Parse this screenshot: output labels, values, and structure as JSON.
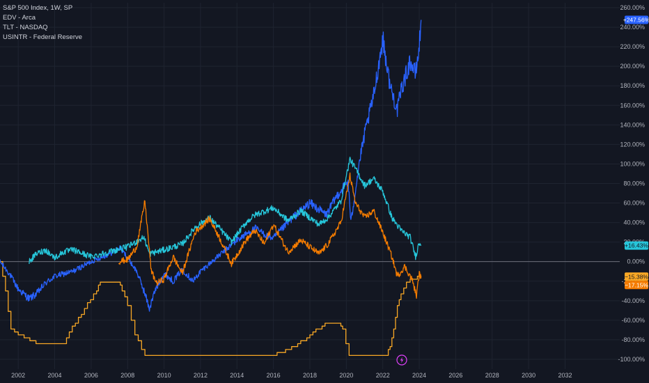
{
  "legend": {
    "main": "S&P 500 Index, 1W, SP",
    "items": [
      "EDV - Arca",
      "TLT - NASDAQ",
      "USINTR - Federal Reserve"
    ]
  },
  "colors": {
    "background": "#131722",
    "grid": "#1f2430",
    "spx": "#2962ff",
    "edv": "#f57c00",
    "tlt": "#26c6da",
    "usintr": "#f9a825",
    "zero": "#787b86",
    "flash": "#e040fb"
  },
  "flash_icon": "lightning-icon",
  "chart_data": {
    "type": "line",
    "title": "S&P 500 Index, 1W, SP",
    "xlim": [
      2001.0,
      2035.0
    ],
    "ylim": [
      -110,
      265
    ],
    "x_ticks": [
      "2002",
      "2004",
      "2006",
      "2008",
      "2010",
      "2012",
      "2014",
      "2016",
      "2018",
      "2020",
      "2022",
      "2024",
      "2026",
      "2028",
      "2030",
      "2032"
    ],
    "y_ticks": [
      "260.00%",
      "240.00%",
      "220.00%",
      "200.00%",
      "180.00%",
      "160.00%",
      "140.00%",
      "120.00%",
      "100.00%",
      "80.00%",
      "60.00%",
      "40.00%",
      "20.00%",
      "0.00%",
      "-20.00%",
      "-40.00%",
      "-60.00%",
      "-80.00%",
      "-100.00%"
    ],
    "grid": true,
    "last_values": {
      "spx": "+247.56%",
      "tlt": "+16.43%",
      "edv_a": "−15.38%",
      "edv_b": "−17.15%"
    },
    "series": [
      {
        "name": "S&P 500 Index",
        "key": "spx",
        "points": [
          [
            2001.0,
            0
          ],
          [
            2001.5,
            -12
          ],
          [
            2002.0,
            -28
          ],
          [
            2002.6,
            -38
          ],
          [
            2003.0,
            -33
          ],
          [
            2003.5,
            -22
          ],
          [
            2004.0,
            -15
          ],
          [
            2005.0,
            -10
          ],
          [
            2006.0,
            0
          ],
          [
            2007.0,
            8
          ],
          [
            2007.6,
            14
          ],
          [
            2008.0,
            4
          ],
          [
            2008.5,
            -10
          ],
          [
            2008.9,
            -30
          ],
          [
            2009.2,
            -48
          ],
          [
            2009.5,
            -30
          ],
          [
            2010.0,
            -12
          ],
          [
            2010.5,
            -20
          ],
          [
            2011.0,
            -8
          ],
          [
            2011.6,
            -20
          ],
          [
            2012.0,
            -10
          ],
          [
            2013.0,
            6
          ],
          [
            2014.0,
            22
          ],
          [
            2015.0,
            34
          ],
          [
            2015.7,
            26
          ],
          [
            2016.0,
            24
          ],
          [
            2017.0,
            44
          ],
          [
            2018.0,
            60
          ],
          [
            2018.9,
            48
          ],
          [
            2019.5,
            68
          ],
          [
            2020.1,
            82
          ],
          [
            2020.25,
            40
          ],
          [
            2020.7,
            100
          ],
          [
            2021.0,
            130
          ],
          [
            2021.5,
            170
          ],
          [
            2022.0,
            228
          ],
          [
            2022.4,
            180
          ],
          [
            2022.8,
            155
          ],
          [
            2023.0,
            175
          ],
          [
            2023.5,
            205
          ],
          [
            2023.8,
            192
          ],
          [
            2024.0,
            220
          ],
          [
            2024.1,
            247.56
          ]
        ]
      },
      {
        "name": "TLT",
        "key": "tlt",
        "points": [
          [
            2002.6,
            0
          ],
          [
            2003.0,
            8
          ],
          [
            2003.5,
            12
          ],
          [
            2004.0,
            4
          ],
          [
            2004.5,
            10
          ],
          [
            2005.0,
            12
          ],
          [
            2006.0,
            5
          ],
          [
            2007.0,
            10
          ],
          [
            2008.0,
            15
          ],
          [
            2008.9,
            25
          ],
          [
            2009.2,
            8
          ],
          [
            2010.0,
            12
          ],
          [
            2011.0,
            18
          ],
          [
            2011.7,
            35
          ],
          [
            2012.5,
            45
          ],
          [
            2013.0,
            35
          ],
          [
            2013.7,
            20
          ],
          [
            2014.5,
            40
          ],
          [
            2015.0,
            48
          ],
          [
            2016.0,
            55
          ],
          [
            2016.8,
            42
          ],
          [
            2017.5,
            52
          ],
          [
            2018.5,
            38
          ],
          [
            2019.0,
            45
          ],
          [
            2019.7,
            62
          ],
          [
            2020.2,
            105
          ],
          [
            2020.6,
            92
          ],
          [
            2021.0,
            78
          ],
          [
            2021.5,
            85
          ],
          [
            2022.0,
            72
          ],
          [
            2022.5,
            45
          ],
          [
            2023.0,
            32
          ],
          [
            2023.5,
            25
          ],
          [
            2023.8,
            5
          ],
          [
            2024.0,
            20
          ],
          [
            2024.1,
            16.43
          ]
        ]
      },
      {
        "name": "EDV",
        "key": "edv",
        "points": [
          [
            2007.5,
            0
          ],
          [
            2008.0,
            2
          ],
          [
            2008.5,
            15
          ],
          [
            2008.95,
            62
          ],
          [
            2009.3,
            -10
          ],
          [
            2009.6,
            -22
          ],
          [
            2010.0,
            -18
          ],
          [
            2010.5,
            5
          ],
          [
            2011.0,
            -12
          ],
          [
            2011.7,
            30
          ],
          [
            2012.5,
            44
          ],
          [
            2013.0,
            26
          ],
          [
            2013.7,
            -2
          ],
          [
            2014.5,
            22
          ],
          [
            2015.0,
            32
          ],
          [
            2015.5,
            18
          ],
          [
            2016.0,
            38
          ],
          [
            2016.8,
            10
          ],
          [
            2017.5,
            22
          ],
          [
            2018.5,
            8
          ],
          [
            2019.0,
            18
          ],
          [
            2019.7,
            40
          ],
          [
            2020.2,
            88
          ],
          [
            2020.5,
            60
          ],
          [
            2021.0,
            45
          ],
          [
            2021.5,
            52
          ],
          [
            2022.0,
            30
          ],
          [
            2022.5,
            5
          ],
          [
            2022.8,
            -15
          ],
          [
            2023.2,
            -5
          ],
          [
            2023.6,
            -18
          ],
          [
            2023.85,
            -35
          ],
          [
            2024.0,
            -12
          ],
          [
            2024.1,
            -17.15
          ]
        ]
      },
      {
        "name": "USINTR",
        "key": "usintr",
        "points": [
          [
            2001.0,
            0
          ],
          [
            2001.3,
            -30
          ],
          [
            2001.6,
            -70
          ],
          [
            2002.0,
            -75
          ],
          [
            2002.8,
            -82
          ],
          [
            2003.5,
            -85
          ],
          [
            2004.5,
            -85
          ],
          [
            2004.8,
            -72
          ],
          [
            2005.3,
            -58
          ],
          [
            2005.8,
            -42
          ],
          [
            2006.3,
            -30
          ],
          [
            2006.5,
            -20
          ],
          [
            2007.5,
            -20
          ],
          [
            2007.7,
            -30
          ],
          [
            2008.0,
            -45
          ],
          [
            2008.4,
            -75
          ],
          [
            2008.95,
            -96
          ],
          [
            2015.9,
            -96
          ],
          [
            2016.5,
            -92
          ],
          [
            2017.0,
            -88
          ],
          [
            2017.5,
            -82
          ],
          [
            2018.0,
            -75
          ],
          [
            2018.5,
            -68
          ],
          [
            2019.0,
            -62
          ],
          [
            2019.6,
            -62
          ],
          [
            2019.8,
            -70
          ],
          [
            2020.15,
            -96
          ],
          [
            2022.2,
            -96
          ],
          [
            2022.4,
            -86
          ],
          [
            2022.6,
            -68
          ],
          [
            2022.8,
            -45
          ],
          [
            2023.0,
            -32
          ],
          [
            2023.3,
            -22
          ],
          [
            2023.7,
            -17
          ],
          [
            2024.1,
            -15.38
          ]
        ]
      }
    ]
  }
}
